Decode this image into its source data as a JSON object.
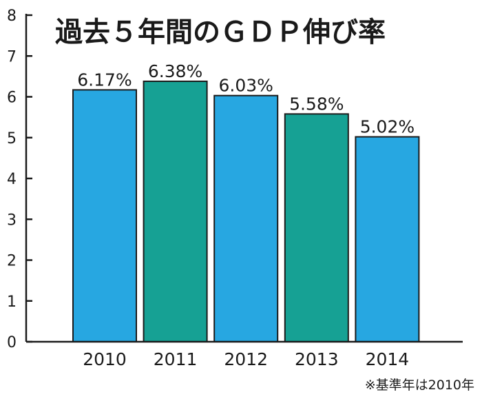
{
  "chart_data": {
    "type": "bar",
    "title": "過去５年間のＧＤＰ伸び率",
    "categories": [
      "2010",
      "2011",
      "2012",
      "2013",
      "2014"
    ],
    "values": [
      6.17,
      6.38,
      6.03,
      5.58,
      5.02
    ],
    "value_labels": [
      "6.17%",
      "6.38%",
      "6.03%",
      "5.58%",
      "5.02%"
    ],
    "bar_colors": [
      "#27a7e1",
      "#16a194",
      "#27a7e1",
      "#16a194",
      "#27a7e1"
    ],
    "ylim": [
      0,
      8
    ],
    "yticks": [
      0,
      1,
      2,
      3,
      4,
      5,
      6,
      7,
      8
    ],
    "grid": false,
    "legend": "none",
    "xlabel": "",
    "ylabel": "",
    "footnote": "※基準年は2010年"
  }
}
